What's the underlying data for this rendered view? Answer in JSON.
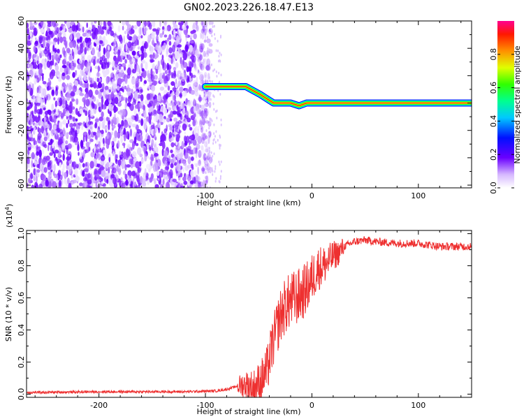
{
  "title": "GN02.2023.226.18.47.E13",
  "chart_data": [
    {
      "type": "heatmap",
      "xlabel": "Height of straight line (km)",
      "ylabel": "Frequency (Hz)",
      "xlim": [
        -268,
        150
      ],
      "ylim": [
        -62,
        60
      ],
      "x_ticks": [
        -200,
        -100,
        0,
        100
      ],
      "x_tick_labels": [
        "-200",
        "-100",
        "0",
        "100"
      ],
      "y_ticks": [
        -60,
        -40,
        -20,
        0,
        20,
        40,
        60
      ],
      "y_tick_labels": [
        "-60",
        "-40",
        "-20",
        "0",
        "20",
        "40",
        "60"
      ],
      "colorbar": {
        "label": "Normalized spectral amplitude",
        "ticks": [
          0.0,
          0.2,
          0.4,
          0.6,
          0.8
        ],
        "tick_labels": [
          "0.0",
          "0.2",
          "0.4",
          "0.6",
          "0.8"
        ],
        "range": [
          0,
          1
        ],
        "colormap": "rainbow"
      },
      "noise_region": {
        "x": [
          -268,
          -95
        ],
        "y": [
          -62,
          60
        ],
        "amplitude": [
          0.05,
          0.3
        ]
      },
      "ridge": {
        "x": [
          -100,
          -90,
          -80,
          -70,
          -62,
          -55,
          -48,
          -42,
          -36,
          -30,
          -20,
          -12,
          -5,
          0,
          5,
          10,
          20,
          40,
          60,
          80,
          100,
          120,
          150
        ],
        "y": [
          12,
          12,
          12,
          12,
          12,
          9,
          6,
          3,
          0,
          0,
          0,
          -2,
          0,
          0,
          0,
          0,
          0,
          0,
          0,
          0,
          0,
          0,
          0
        ]
      }
    },
    {
      "type": "line",
      "xlabel": "Height of straight line (km)",
      "ylabel": "SNR (10 * v/v)",
      "y_multiplier": "(x10",
      "y_multiplier_exp": "4",
      "y_multiplier_close": ")",
      "xlim": [
        -268,
        150
      ],
      "ylim": [
        -0.02,
        1.02
      ],
      "x_ticks": [
        -200,
        -100,
        0,
        100
      ],
      "x_tick_labels": [
        "-200",
        "-100",
        "0",
        "100"
      ],
      "y_ticks": [
        0.0,
        0.2,
        0.4,
        0.6,
        0.8,
        1.0
      ],
      "y_tick_labels": [
        "0.0",
        "0.2",
        "0.4",
        "0.6",
        "0.8",
        "1.0"
      ],
      "color": "#ee3030",
      "series": [
        {
          "x": [
            -268,
            -200,
            -120,
            -90,
            -80,
            -70,
            -62,
            -55,
            -48,
            -42,
            -38,
            -34,
            -30,
            -25,
            -20,
            -15,
            -10,
            -5,
            0,
            5,
            10,
            15,
            20,
            25,
            30,
            40,
            50,
            60,
            80,
            100,
            120,
            150
          ],
          "y": [
            0.01,
            0.015,
            0.015,
            0.02,
            0.03,
            0.05,
            0.06,
            0.04,
            0.08,
            0.15,
            0.28,
            0.38,
            0.48,
            0.55,
            0.58,
            0.6,
            0.62,
            0.66,
            0.72,
            0.78,
            0.8,
            0.82,
            0.86,
            0.88,
            0.92,
            0.95,
            0.96,
            0.95,
            0.94,
            0.94,
            0.92,
            0.92
          ]
        }
      ]
    }
  ]
}
